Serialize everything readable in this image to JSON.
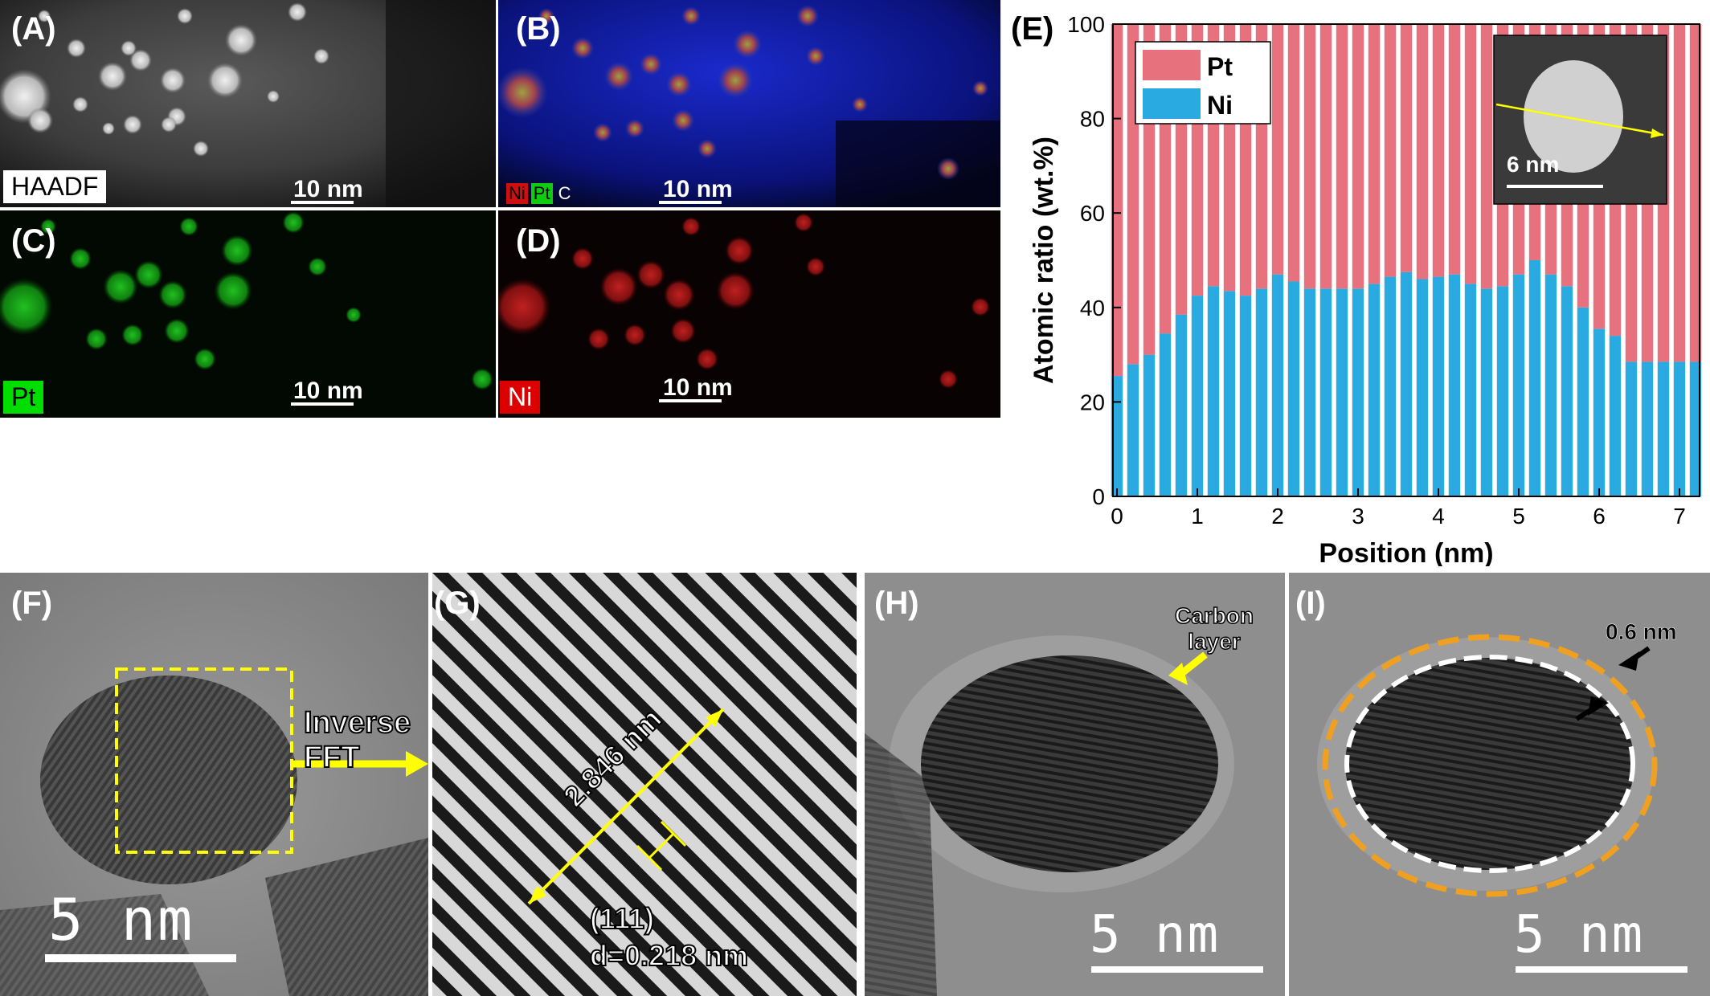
{
  "panels": {
    "A": {
      "label": "(A)",
      "tag": "HAADF",
      "scale": "10 nm"
    },
    "B": {
      "label": "(B)",
      "legend": [
        "Ni",
        "Pt",
        "C"
      ],
      "scale": "10 nm"
    },
    "C": {
      "label": "(C)",
      "tag": "Pt",
      "scale": "10 nm"
    },
    "D": {
      "label": "(D)",
      "tag": "Ni",
      "scale": "10 nm"
    },
    "E": {
      "label": "(E)"
    },
    "F": {
      "label": "(F)",
      "arrow_text": "Inverse FFT",
      "scale": "5 nm"
    },
    "G": {
      "label": "(G)",
      "length": "2.846 nm",
      "plane": "(111)",
      "spacing": "d=0.218 nm"
    },
    "H": {
      "label": "(H)",
      "annotation_line1": "Carbon",
      "annotation_line2": "layer",
      "scale": "5 nm"
    },
    "I": {
      "label": "(I)",
      "thickness": "0.6 nm",
      "scale": "5 nm"
    }
  },
  "colors": {
    "pt": "#e7717d",
    "ni": "#29abe2",
    "yellow": "#ffff00",
    "orange": "#f0a020"
  },
  "chart_data": {
    "type": "bar",
    "stacked": true,
    "xlabel": "Position (nm)",
    "ylabel": "Atomic ratio (wt.%)",
    "xlim": [
      -0.05,
      7.25
    ],
    "ylim": [
      0,
      100
    ],
    "xticks": [
      0,
      1,
      2,
      3,
      4,
      5,
      6,
      7
    ],
    "yticks": [
      0,
      20,
      40,
      60,
      80,
      100
    ],
    "legend_position": "top-left",
    "inset_scale": "6 nm",
    "x": [
      0.0,
      0.2,
      0.4,
      0.6,
      0.8,
      1.0,
      1.2,
      1.4,
      1.6,
      1.8,
      2.0,
      2.2,
      2.4,
      2.6,
      2.8,
      3.0,
      3.2,
      3.4,
      3.6,
      3.8,
      4.0,
      4.2,
      4.4,
      4.6,
      4.8,
      5.0,
      5.2,
      5.4,
      5.6,
      5.8,
      6.0,
      6.2,
      6.4,
      6.6,
      6.8,
      7.0,
      7.2
    ],
    "series": [
      {
        "name": "Ni",
        "values": [
          25.5,
          28,
          30,
          34.5,
          38.5,
          42.5,
          44.5,
          43.5,
          42.5,
          44,
          47,
          45.5,
          44,
          44,
          44,
          44,
          45,
          46.5,
          47.5,
          46,
          46.5,
          47,
          45,
          44,
          44.5,
          47,
          50,
          47,
          44.5,
          40,
          35.5,
          34,
          28.5,
          28.5,
          28.5,
          28.5,
          28.5
        ]
      },
      {
        "name": "Pt",
        "values": [
          74.5,
          72,
          70,
          65.5,
          61.5,
          57.5,
          55.5,
          56.5,
          57.5,
          56,
          53,
          54.5,
          56,
          56,
          56,
          56,
          55,
          53.5,
          52.5,
          54,
          53.5,
          53,
          55,
          56,
          55.5,
          53,
          50,
          53,
          55.5,
          60,
          64.5,
          66,
          71.5,
          71.5,
          71.5,
          71.5,
          71.5
        ]
      }
    ]
  }
}
